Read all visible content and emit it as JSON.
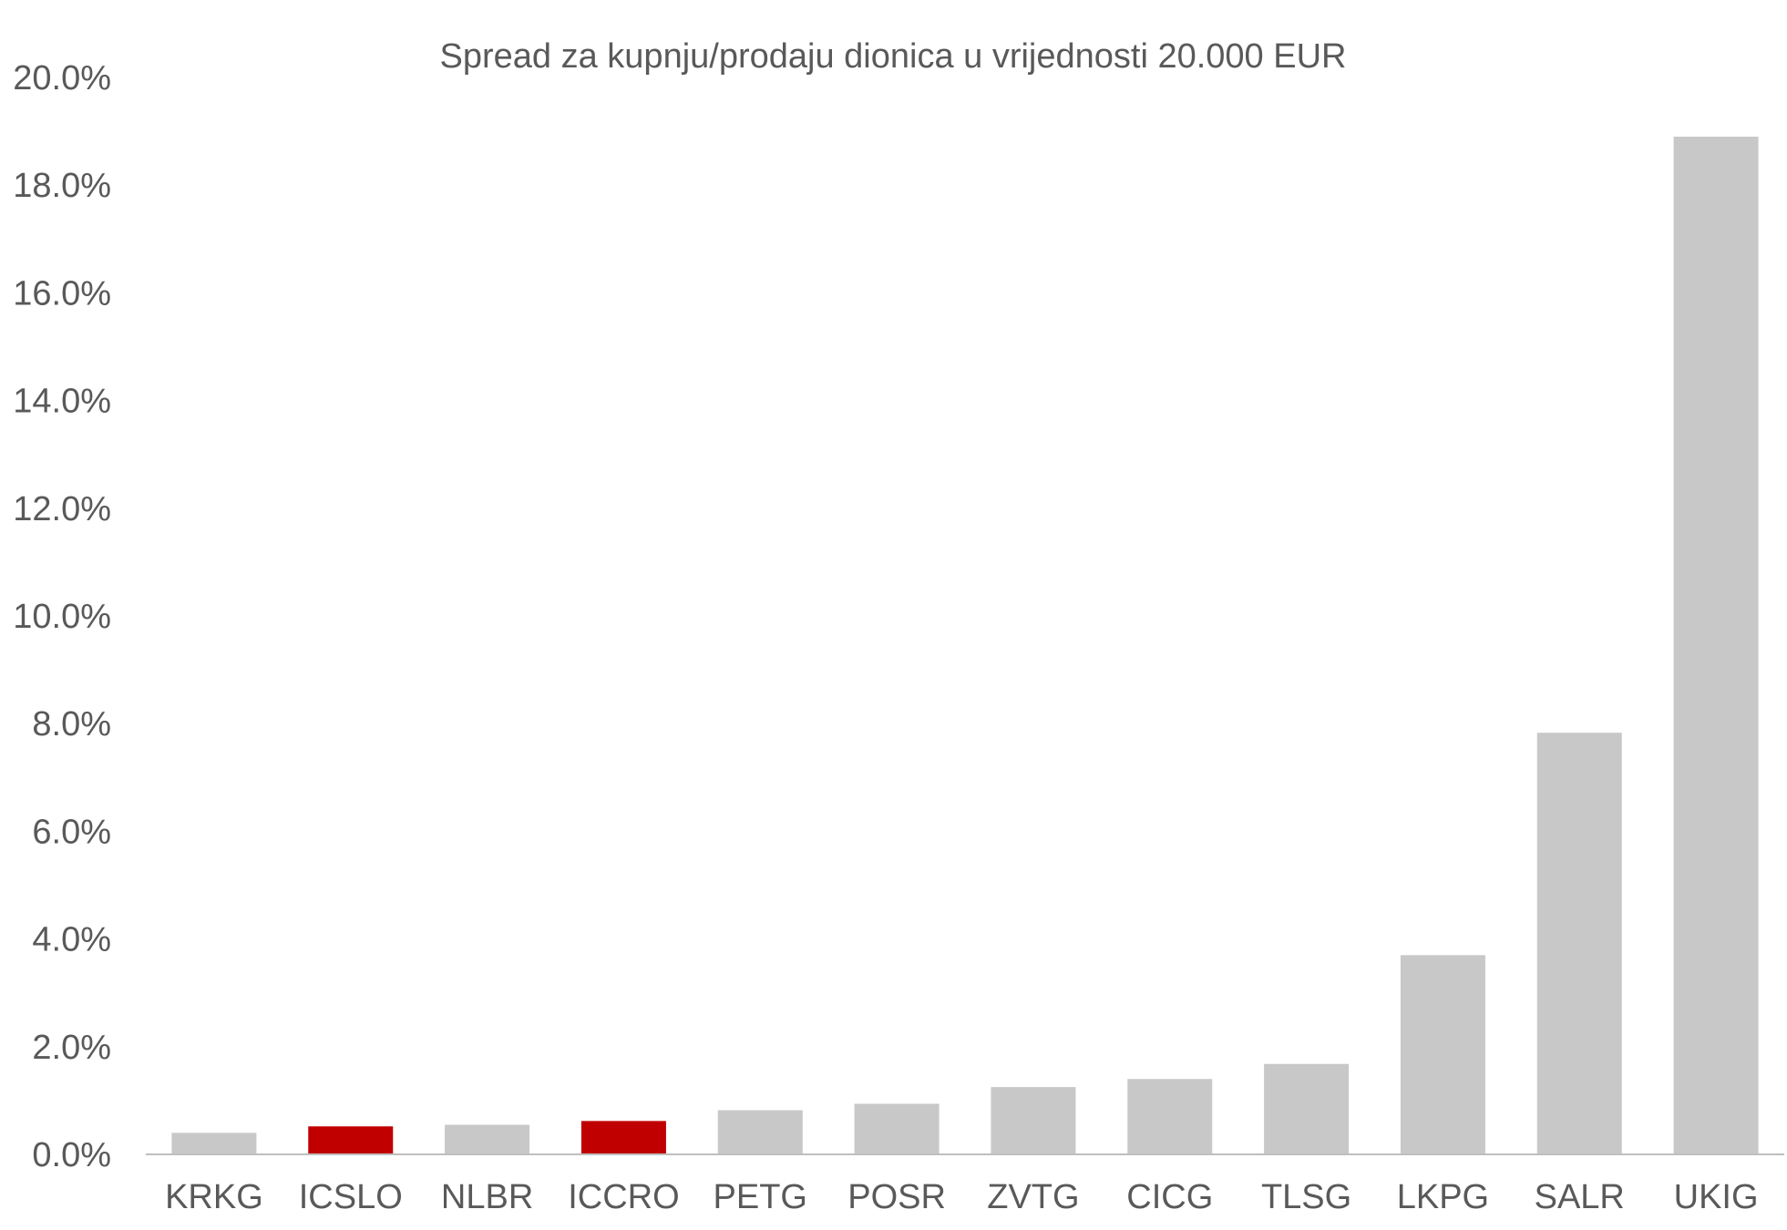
{
  "chart_data": {
    "type": "bar",
    "title": "Spread za kupnju/prodaju dionica u vrijednosti 20.000 EUR",
    "xlabel": "",
    "ylabel": "",
    "categories": [
      "KRKG",
      "ICSLO",
      "NLBR",
      "ICCRO",
      "PETG",
      "POSR",
      "ZVTG",
      "CICG",
      "TLSG",
      "LKPG",
      "SALR",
      "UKIG"
    ],
    "values": [
      0.4,
      0.52,
      0.55,
      0.62,
      0.82,
      0.94,
      1.25,
      1.4,
      1.68,
      3.7,
      7.83,
      18.9
    ],
    "value_unit": "%",
    "ylim": [
      0,
      20
    ],
    "y_ticks": [
      "0.0%",
      "2.0%",
      "4.0%",
      "6.0%",
      "8.0%",
      "10.0%",
      "12.0%",
      "14.0%",
      "16.0%",
      "18.0%",
      "20.0%"
    ],
    "y_tick_values": [
      0,
      2,
      4,
      6,
      8,
      10,
      12,
      14,
      16,
      18,
      20
    ],
    "grid": false,
    "legend": "none",
    "colors": {
      "default_bar": "#c8c8c8",
      "highlight_bar": "#c00000",
      "axis_line": "#bfbfbf",
      "text": "#595959"
    },
    "highlighted_categories": [
      "ICSLO",
      "ICCRO"
    ]
  }
}
